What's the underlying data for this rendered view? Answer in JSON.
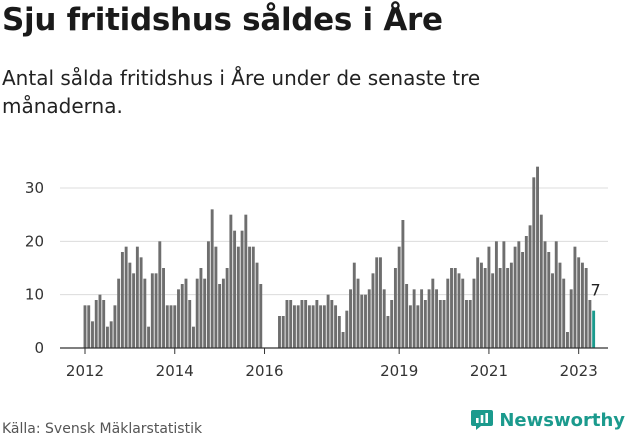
{
  "header": {
    "title": "Sju fritidshus såldes i Åre",
    "subtitle": "Antal sålda fritidshus i Åre under de senaste tre månaderna."
  },
  "footer": {
    "source": "Källa: Svensk Mäklarstatistik",
    "brand": "Newsworthy",
    "brand_icon": "newsworthy-logo-icon",
    "brand_color": "#1b9a8d"
  },
  "chart_data": {
    "type": "bar",
    "title": "",
    "xlabel": "",
    "ylabel": "",
    "ylim": [
      0,
      35
    ],
    "yticks": [
      0,
      10,
      20,
      30
    ],
    "x_tick_labels": [
      "2012",
      "2014",
      "2016",
      "2019",
      "2021",
      "2023"
    ],
    "x_tick_months": [
      "2012-01",
      "2014-01",
      "2016-01",
      "2019-01",
      "2021-01",
      "2023-01"
    ],
    "grid": true,
    "bar_color": "#6e6e6e",
    "highlight_color": "#1b9a8d",
    "last_value_label": "7",
    "series": [
      {
        "start": "2012-01",
        "values": [
          8,
          8,
          5,
          9,
          10,
          9,
          4,
          5,
          8,
          13,
          18,
          19,
          16,
          14,
          19,
          17,
          13,
          4,
          14,
          14,
          20,
          15,
          8,
          8,
          8,
          11,
          12,
          13,
          9,
          4,
          13,
          15,
          13,
          20,
          26,
          19,
          12,
          13,
          15,
          25,
          22,
          19,
          22,
          25,
          19,
          19,
          16,
          12
        ]
      },
      {
        "start": "2016-05",
        "values": [
          6,
          6,
          9,
          9,
          8,
          8,
          9,
          9,
          8,
          8,
          9,
          8,
          8,
          10,
          9,
          8,
          6,
          3,
          7,
          11,
          16,
          13,
          10,
          10,
          11,
          14,
          17,
          17,
          11,
          6,
          9,
          15,
          19,
          24,
          12,
          8,
          11,
          8,
          11,
          9,
          11,
          13,
          11,
          9,
          9,
          13,
          15,
          15,
          14,
          13,
          9,
          9,
          13,
          17,
          16,
          15,
          19,
          14,
          20,
          15,
          20,
          15,
          16,
          19,
          20,
          18,
          21,
          23,
          32,
          34,
          25,
          20,
          18,
          14,
          20,
          16,
          13,
          3,
          11,
          19,
          17,
          16,
          15,
          9,
          7
        ]
      }
    ]
  }
}
